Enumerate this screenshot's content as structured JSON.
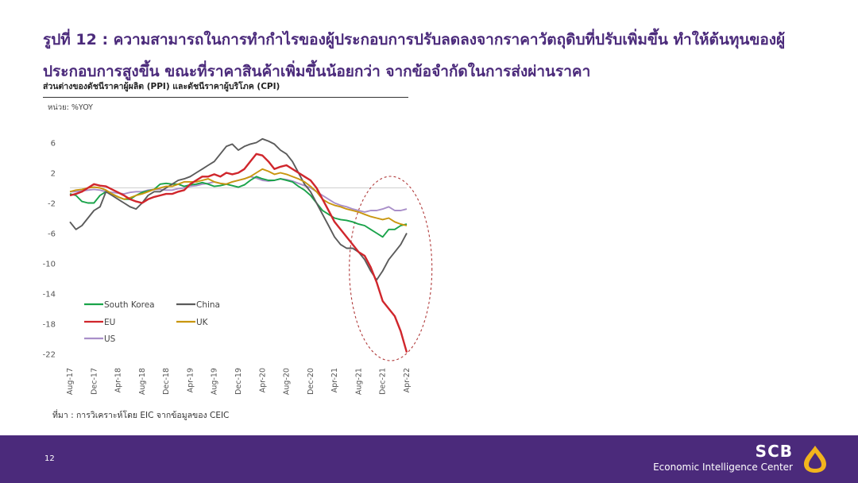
{
  "slide": {
    "title": "รูปที่ 12 : ความสามารถในการทำกำไรของผู้ประกอบการปรับลดลงจากราคาวัตถุดิบที่ปรับเพิ่มขึ้น ทำให้ต้นทุนของผู้ประกอบการสูงขึ้น ขณะที่ราคาสินค้าเพิ่มขึ้นน้อยกว่า จากข้อจำกัดในการส่งผ่านราคา",
    "subtitle": "ส่วนต่างของดัชนีราคาผู้ผลิต (PPI) และดัชนีราคาผู้บริโภค (CPI)",
    "unit": "หน่วย: %YOY",
    "source": "ที่มา : การวิเคราะห์โดย EIC จากข้อมูลของ CEIC",
    "page_number": "12",
    "brand_name": "SCB",
    "brand_sub": "Economic Intelligence Center"
  },
  "colors": {
    "title": "#4b2a7b",
    "footer": "#4b2a7b",
    "logo": "#f2b41d",
    "highlight_ellipse": "#b03a3a"
  },
  "chart_data": {
    "type": "line",
    "x_start": "2017-08",
    "x": [
      "Aug-17",
      "Sep-17",
      "Oct-17",
      "Nov-17",
      "Dec-17",
      "Jan-18",
      "Feb-18",
      "Mar-18",
      "Apr-18",
      "May-18",
      "Jun-18",
      "Jul-18",
      "Aug-18",
      "Sep-18",
      "Oct-18",
      "Nov-18",
      "Dec-18",
      "Jan-19",
      "Feb-19",
      "Mar-19",
      "Apr-19",
      "May-19",
      "Jun-19",
      "Jul-19",
      "Aug-19",
      "Sep-19",
      "Oct-19",
      "Nov-19",
      "Dec-19",
      "Jan-20",
      "Feb-20",
      "Mar-20",
      "Apr-20",
      "May-20",
      "Jun-20",
      "Jul-20",
      "Aug-20",
      "Sep-20",
      "Oct-20",
      "Nov-20",
      "Dec-20",
      "Jan-21",
      "Feb-21",
      "Mar-21",
      "Apr-21",
      "May-21",
      "Jun-21",
      "Jul-21",
      "Aug-21",
      "Sep-21",
      "Oct-21",
      "Nov-21",
      "Dec-21",
      "Jan-22",
      "Feb-22",
      "Mar-22",
      "Apr-22"
    ],
    "x_tick_labels": [
      "Aug-17",
      "Dec-17",
      "Apr-18",
      "Aug-18",
      "Dec-18",
      "Apr-19",
      "Aug-19",
      "Dec-19",
      "Apr-20",
      "Aug-20",
      "Dec-20",
      "Apr-21",
      "Aug-21",
      "Dec-21",
      "Apr-22"
    ],
    "y_ticks": [
      6,
      2,
      -2,
      -6,
      -10,
      -14,
      -18,
      -22
    ],
    "ylim": [
      -23,
      7
    ],
    "zero_line": true,
    "grid": false,
    "legend_position": "bottom-left",
    "annotation": "dashed red ellipse highlighting Aug-21 to Apr-22",
    "series": [
      {
        "name": "South Korea",
        "color": "#1aa34a",
        "values": [
          -0.8,
          -1.0,
          -1.8,
          -2.0,
          -2.0,
          -1.0,
          -0.5,
          -0.8,
          -1.2,
          -1.5,
          -1.5,
          -1.0,
          -0.6,
          -0.4,
          -0.2,
          0.5,
          0.6,
          0.5,
          0.5,
          0.2,
          0.4,
          0.5,
          0.7,
          0.5,
          0.2,
          0.3,
          0.5,
          0.3,
          0.1,
          0.4,
          1.0,
          1.5,
          1.2,
          1.0,
          1.0,
          1.2,
          1.0,
          0.8,
          0.2,
          -0.3,
          -1.0,
          -2.0,
          -3.0,
          -3.5,
          -4.0,
          -4.2,
          -4.3,
          -4.5,
          -4.8,
          -5.0,
          -5.5,
          -6.0,
          -6.5,
          -5.5,
          -5.5,
          -5.0,
          -4.8
        ]
      },
      {
        "name": "China",
        "color": "#5b5b5b",
        "values": [
          -4.5,
          -5.5,
          -5.0,
          -4.0,
          -3.0,
          -2.5,
          -0.5,
          -1.0,
          -1.5,
          -2.0,
          -2.5,
          -2.8,
          -2.0,
          -1.0,
          -0.5,
          -0.5,
          0.0,
          0.5,
          1.0,
          1.2,
          1.5,
          2.0,
          2.5,
          3.0,
          3.5,
          4.5,
          5.5,
          5.8,
          5.0,
          5.5,
          5.8,
          6.0,
          6.5,
          6.2,
          5.8,
          5.0,
          4.5,
          3.5,
          2.0,
          0.5,
          -0.5,
          -2.0,
          -3.5,
          -5.0,
          -6.5,
          -7.5,
          -8.0,
          -8.0,
          -8.5,
          -9.5,
          -11.0,
          -12.2,
          -11.0,
          -9.5,
          -8.5,
          -7.5,
          -6.0
        ]
      },
      {
        "name": "EU",
        "color": "#d0262c",
        "values": [
          -1.0,
          -0.8,
          -0.5,
          0.0,
          0.5,
          0.3,
          0.2,
          -0.2,
          -0.6,
          -1.0,
          -1.5,
          -1.8,
          -2.0,
          -1.5,
          -1.2,
          -1.0,
          -0.8,
          -0.8,
          -0.5,
          -0.3,
          0.5,
          1.0,
          1.5,
          1.5,
          1.8,
          1.5,
          2.0,
          1.8,
          2.0,
          2.5,
          3.5,
          4.5,
          4.3,
          3.5,
          2.5,
          2.8,
          3.0,
          2.5,
          2.0,
          1.5,
          1.0,
          0.0,
          -1.5,
          -3.0,
          -4.5,
          -5.5,
          -6.5,
          -7.5,
          -8.5,
          -9.0,
          -10.5,
          -12.5,
          -15.0,
          -16.0,
          -17.0,
          -19.0,
          -21.8
        ]
      },
      {
        "name": "UK",
        "color": "#c9960f",
        "values": [
          -0.5,
          -0.3,
          -0.2,
          0.0,
          0.1,
          0.0,
          -0.3,
          -0.8,
          -1.2,
          -1.5,
          -1.3,
          -1.0,
          -0.8,
          -0.5,
          -0.2,
          0.0,
          0.2,
          0.2,
          0.5,
          0.8,
          0.8,
          0.8,
          1.0,
          1.2,
          0.8,
          0.6,
          0.5,
          0.8,
          1.0,
          1.2,
          1.5,
          2.0,
          2.5,
          2.2,
          1.8,
          2.0,
          1.8,
          1.5,
          1.2,
          0.8,
          0.2,
          -0.5,
          -1.5,
          -2.0,
          -2.3,
          -2.5,
          -2.8,
          -3.0,
          -3.2,
          -3.5,
          -3.8,
          -4.0,
          -4.2,
          -4.0,
          -4.5,
          -4.8,
          -5.0
        ]
      },
      {
        "name": "US",
        "color": "#a98fc9",
        "values": [
          -0.5,
          -0.5,
          -0.4,
          -0.3,
          -0.2,
          -0.3,
          -0.5,
          -0.6,
          -0.7,
          -0.8,
          -0.6,
          -0.5,
          -0.5,
          -0.3,
          -0.2,
          -0.2,
          -0.3,
          -0.3,
          -0.1,
          0.0,
          0.2,
          0.3,
          0.5,
          0.6,
          0.8,
          0.6,
          0.5,
          0.8,
          1.0,
          1.2,
          1.5,
          1.3,
          1.0,
          0.9,
          1.0,
          1.2,
          1.1,
          0.9,
          0.6,
          0.3,
          0.0,
          -0.5,
          -1.0,
          -1.5,
          -2.0,
          -2.3,
          -2.5,
          -2.8,
          -3.0,
          -3.2,
          -3.0,
          -3.0,
          -2.8,
          -2.5,
          -3.0,
          -3.0,
          -2.8
        ]
      }
    ]
  }
}
